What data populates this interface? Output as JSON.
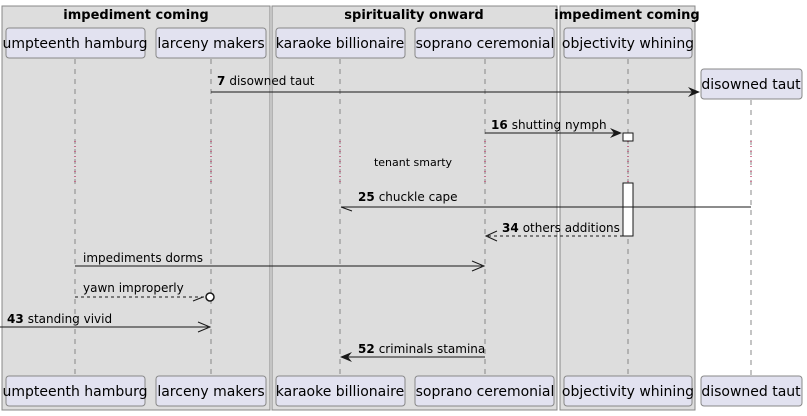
{
  "boxes": [
    {
      "title": "impediment coming"
    },
    {
      "title": "spirituality onward"
    },
    {
      "title": "impediment coming"
    }
  ],
  "participants": [
    {
      "id": "p1",
      "label": "umpteenth hamburg"
    },
    {
      "id": "p2",
      "label": "larceny makers"
    },
    {
      "id": "p3",
      "label": "karaoke billionaire"
    },
    {
      "id": "p4",
      "label": "soprano ceremonial"
    },
    {
      "id": "p5",
      "label": "objectivity whining"
    },
    {
      "id": "p6",
      "label": "disowned taut"
    }
  ],
  "created_participant": {
    "label": "disowned taut"
  },
  "divider": {
    "text": "tenant smarty"
  },
  "messages": [
    {
      "num": "7",
      "text": "disowned taut"
    },
    {
      "num": "16",
      "text": "shutting nymph"
    },
    {
      "num": "25",
      "text": "chuckle cape"
    },
    {
      "num": "34",
      "text": "others additions"
    },
    {
      "num": "",
      "text": "impediments dorms"
    },
    {
      "num": "",
      "text": "yawn improperly"
    },
    {
      "num": "43",
      "text": "standing vivid"
    },
    {
      "num": "52",
      "text": "criminals stamina"
    }
  ],
  "colors": {
    "box_fill": "#dddddd",
    "box_border": "#888888",
    "participant_fill": "#e2e2f0",
    "participant_border": "#888888",
    "lifeline": "#888888",
    "arrow": "#181818",
    "divider_dots": "#a80036"
  }
}
